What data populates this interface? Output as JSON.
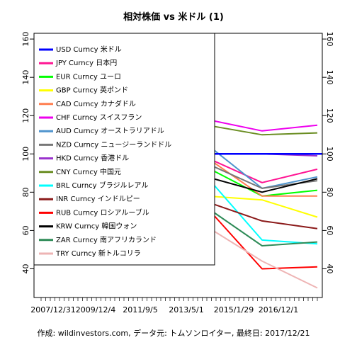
{
  "chart_data": {
    "type": "line",
    "title": "相対株価 vs 米ドル (1)",
    "caption": "作成: wildinvestors.com, データ元: トムソンロイター, 最終日: 2017/12/21",
    "x_tick_labels": [
      "2007/12/31",
      "2009/12/4",
      "2011/9/5",
      "2013/5/1",
      "2015/1/29",
      "2016/12/1"
    ],
    "y_ticks": [
      40,
      60,
      80,
      100,
      120,
      140,
      160
    ],
    "ylim": [
      25,
      163
    ],
    "grid": false,
    "legend_position": "top-left",
    "reference_line": 100,
    "x_positions": [
      0.0,
      0.2,
      0.4,
      0.6,
      0.8,
      1.0
    ],
    "series": [
      {
        "name": "USD Curncy 米ドル",
        "color": "#0000ff",
        "width": 2.5,
        "values": [
          100,
          100,
          100,
          100,
          100,
          100
        ]
      },
      {
        "name": "JPY Curncy 日本円",
        "color": "#ff1493",
        "width": 2,
        "values": [
          100,
          118,
          138,
          98,
          85,
          92
        ]
      },
      {
        "name": "EUR Curncy ユーロ",
        "color": "#00ff00",
        "width": 2,
        "values": [
          100,
          98,
          96,
          93,
          78,
          81
        ]
      },
      {
        "name": "GBP Curncy 英ポンド",
        "color": "#ffff00",
        "width": 2,
        "values": [
          100,
          78,
          80,
          78,
          76,
          67
        ]
      },
      {
        "name": "CAD Curncy カナダドル",
        "color": "#ff7f50",
        "width": 2,
        "values": [
          100,
          95,
          102,
          98,
          78,
          78
        ]
      },
      {
        "name": "CHF Curncy スイスフラン",
        "color": "#ee00ee",
        "width": 2,
        "values": [
          100,
          105,
          135,
          118,
          112,
          115
        ]
      },
      {
        "name": "AUD Curncy オーストラリアドル",
        "color": "#4f94cd",
        "width": 2,
        "values": [
          100,
          95,
          115,
          105,
          82,
          88
        ]
      },
      {
        "name": "NZD Curncy ニュージーランドドル",
        "color": "#777777",
        "width": 2,
        "values": [
          100,
          90,
          98,
          95,
          82,
          86
        ]
      },
      {
        "name": "HKD Curncy 香港ドル",
        "color": "#9a32cd",
        "width": 2,
        "values": [
          100,
          100,
          100,
          100,
          100,
          99
        ]
      },
      {
        "name": "CNY Curncy 中国元",
        "color": "#6b8e23",
        "width": 2,
        "values": [
          100,
          106,
          110,
          115,
          110,
          111
        ]
      },
      {
        "name": "BRL Curncy ブラジルレアル",
        "color": "#00ffff",
        "width": 2,
        "values": [
          100,
          95,
          105,
          88,
          55,
          53
        ]
      },
      {
        "name": "INR Curncy インドルピー",
        "color": "#8b1a1a",
        "width": 2,
        "values": [
          100,
          93,
          90,
          75,
          65,
          61
        ]
      },
      {
        "name": "RUB Curncy ロシアルーブル",
        "color": "#ff0000",
        "width": 2,
        "values": [
          100,
          82,
          80,
          72,
          40,
          41
        ]
      },
      {
        "name": "KRW Curncy 韓国ウォン",
        "color": "#000000",
        "width": 2,
        "values": [
          100,
          82,
          88,
          88,
          80,
          87
        ]
      },
      {
        "name": "ZAR Curncy 南アフリカランド",
        "color": "#2e8b57",
        "width": 2,
        "values": [
          100,
          85,
          90,
          72,
          52,
          54
        ]
      },
      {
        "name": "TRY Curncy 新トルコリラ",
        "color": "#eeb4b4",
        "width": 2,
        "values": [
          100,
          80,
          72,
          62,
          44,
          30
        ]
      }
    ]
  }
}
